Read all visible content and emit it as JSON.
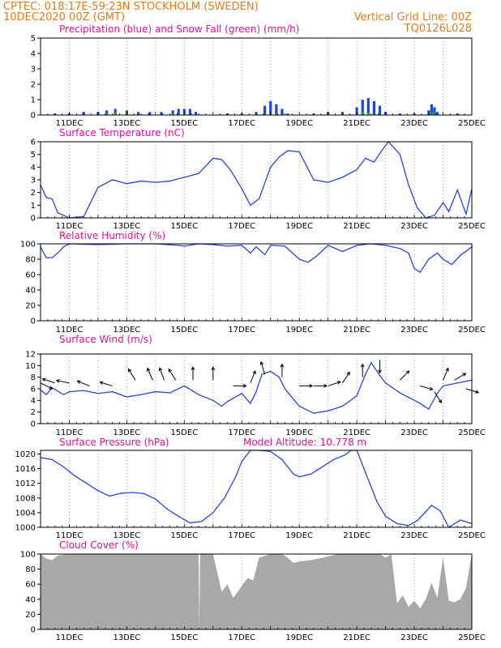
{
  "header": {
    "line1_left": "CPTEC:   018:17E-59:23N   STOCKHOLM (SWEDEN)",
    "line2_left": "10DEC2020 00Z (GMT)",
    "line2_right": "Vertical Grid Line: 00Z",
    "line3_right": "TQ0126L028"
  },
  "colors": {
    "header": "#e87a14",
    "title": "#e0119a",
    "precip": "#1a46e6",
    "snow": "#22b422",
    "line": "#2244e8",
    "cloud": "#a8a8a8",
    "axis": "#000000"
  },
  "chart_data": [
    {
      "type": "bar",
      "title": "Precipitation (blue) and Snow Fall (green) (mm/h)",
      "ylim": [
        0,
        5
      ],
      "yticks": [
        "0",
        "1",
        "2",
        "3",
        "4",
        "5"
      ],
      "xticks": [
        "11DEC",
        "13DEC",
        "15DEC",
        "17DEC",
        "19DEC",
        "21DEC",
        "23DEC",
        "25DEC"
      ],
      "x_days": [
        10,
        25
      ],
      "series": [
        {
          "name": "Precipitation",
          "x": [
            10.5,
            11.0,
            11.5,
            12.0,
            12.3,
            12.6,
            13.0,
            13.4,
            13.8,
            14.2,
            14.6,
            14.8,
            15.0,
            15.2,
            15.4,
            16.5,
            17.0,
            17.5,
            17.8,
            18.0,
            18.2,
            18.4,
            18.6,
            19.5,
            20.0,
            20.5,
            21.0,
            21.2,
            21.4,
            21.6,
            21.8,
            22.0,
            22.5,
            23.0,
            23.5,
            23.6,
            23.7,
            23.8,
            24.5
          ],
          "values": [
            0.1,
            0.1,
            0.2,
            0.2,
            0.3,
            0.4,
            0.3,
            0.2,
            0.2,
            0.2,
            0.3,
            0.4,
            0.4,
            0.4,
            0.2,
            0.1,
            0.1,
            0.2,
            0.6,
            0.9,
            0.7,
            0.4,
            0.1,
            0.1,
            0.2,
            0.2,
            0.5,
            1.0,
            1.1,
            0.9,
            0.6,
            0.2,
            0.1,
            0.1,
            0.3,
            0.7,
            0.5,
            0.2,
            0.1
          ]
        },
        {
          "name": "Snow Fall",
          "x": [
            12.3,
            12.6,
            13.0,
            14.6,
            15.0,
            18.0,
            18.2,
            21.2,
            21.4,
            23.6,
            23.7
          ],
          "values": [
            0.1,
            0.15,
            0.1,
            0.1,
            0.1,
            0.1,
            0.1,
            0.15,
            0.15,
            0.15,
            0.1
          ]
        }
      ]
    },
    {
      "type": "line",
      "title": "Surface Temperature (nC)",
      "ylim": [
        0,
        6
      ],
      "yticks": [
        "0",
        "1",
        "2",
        "3",
        "4",
        "5",
        "6"
      ],
      "xticks": [
        "11DEC",
        "13DEC",
        "15DEC",
        "17DEC",
        "19DEC",
        "21DEC",
        "23DEC",
        "25DEC"
      ],
      "x_days": [
        10,
        25
      ],
      "series": [
        {
          "name": "",
          "x": [
            10.0,
            10.2,
            10.4,
            10.6,
            11.0,
            11.5,
            12.0,
            12.5,
            13.0,
            13.5,
            14.0,
            14.5,
            15.0,
            15.5,
            16.0,
            16.3,
            16.6,
            17.0,
            17.3,
            17.6,
            18.0,
            18.3,
            18.6,
            19.0,
            19.5,
            20.0,
            20.5,
            21.0,
            21.3,
            21.6,
            21.9,
            22.1,
            22.5,
            22.8,
            23.1,
            23.4,
            23.7,
            24.0,
            24.2,
            24.5,
            24.8,
            25.0
          ],
          "values": [
            2.6,
            1.6,
            1.5,
            0.4,
            0.0,
            0.1,
            2.4,
            3.0,
            2.7,
            2.9,
            2.8,
            2.9,
            3.2,
            3.5,
            4.7,
            4.6,
            3.8,
            2.3,
            1.0,
            1.5,
            4.0,
            4.8,
            5.3,
            5.2,
            3.0,
            2.8,
            3.2,
            3.8,
            4.7,
            4.4,
            5.4,
            6.2,
            5.0,
            2.6,
            0.8,
            0.0,
            0.2,
            1.2,
            0.5,
            2.2,
            0.3,
            2.3
          ]
        }
      ]
    },
    {
      "type": "line",
      "title": "Relative Humidity (%)",
      "ylim": [
        0,
        100
      ],
      "yticks": [
        "0",
        "20",
        "40",
        "60",
        "80",
        "100"
      ],
      "xticks": [
        "11DEC",
        "13DEC",
        "15DEC",
        "17DEC",
        "19DEC",
        "21DEC",
        "23DEC",
        "25DEC"
      ],
      "x_days": [
        10,
        25
      ],
      "series": [
        {
          "name": "",
          "x": [
            10.0,
            10.2,
            10.4,
            10.6,
            10.8,
            11.0,
            12.0,
            13.0,
            14.0,
            14.8,
            15.0,
            15.5,
            16.0,
            16.5,
            17.0,
            17.3,
            17.5,
            17.8,
            18.0,
            18.5,
            19.0,
            19.3,
            19.6,
            20.0,
            20.5,
            21.0,
            21.5,
            22.0,
            22.5,
            22.8,
            23.0,
            23.2,
            23.5,
            23.8,
            24.0,
            24.3,
            24.6,
            25.0
          ],
          "values": [
            96,
            82,
            82,
            88,
            96,
            100,
            99,
            100,
            100,
            98,
            97,
            100,
            99,
            97,
            98,
            88,
            96,
            86,
            98,
            97,
            80,
            76,
            84,
            98,
            90,
            98,
            100,
            98,
            94,
            88,
            68,
            63,
            80,
            88,
            80,
            73,
            85,
            96
          ]
        }
      ]
    },
    {
      "type": "line",
      "title": "Surface Wind (m/s)",
      "ylim": [
        0,
        12
      ],
      "yticks": [
        "0",
        "2",
        "4",
        "6",
        "8",
        "10",
        "12"
      ],
      "xticks": [
        "11DEC",
        "13DEC",
        "15DEC",
        "17DEC",
        "19DEC",
        "21DEC",
        "23DEC",
        "25DEC"
      ],
      "x_days": [
        10,
        25
      ],
      "series": [
        {
          "name": "",
          "x": [
            10.0,
            10.2,
            10.4,
            10.8,
            11.0,
            11.5,
            12.0,
            12.5,
            13.0,
            13.5,
            14.0,
            14.5,
            15.0,
            15.5,
            16.0,
            16.3,
            16.5,
            17.0,
            17.3,
            17.5,
            17.7,
            18.0,
            18.3,
            18.5,
            19.0,
            19.5,
            20.0,
            20.5,
            21.0,
            21.3,
            21.5,
            21.8,
            22.0,
            22.5,
            23.0,
            23.2,
            23.5,
            23.8,
            24.0,
            24.5,
            25.0
          ],
          "values": [
            5.8,
            5.0,
            6.2,
            5.0,
            5.5,
            5.7,
            5.2,
            5.5,
            4.6,
            5.0,
            5.5,
            5.3,
            6.5,
            5.0,
            4.0,
            3.0,
            3.8,
            5.2,
            3.5,
            5.5,
            8.5,
            9.0,
            8.0,
            6.0,
            3.0,
            1.8,
            2.2,
            3.0,
            4.8,
            8.5,
            10.5,
            8.3,
            7.0,
            5.3,
            4.0,
            3.5,
            2.5,
            5.2,
            6.5,
            7.0,
            7.5
          ]
        }
      ],
      "wind_arrows": [
        {
          "x": 10.0,
          "y": 7.0,
          "u": 1.0,
          "v": -0.5
        },
        {
          "x": 10.5,
          "y": 7.0,
          "u": -0.9,
          "v": 0.3
        },
        {
          "x": 11.0,
          "y": 7.0,
          "u": -1.0,
          "v": 0.2
        },
        {
          "x": 11.7,
          "y": 6.5,
          "u": -1.0,
          "v": 0.4
        },
        {
          "x": 12.5,
          "y": 6.5,
          "u": -1.0,
          "v": 0.3
        },
        {
          "x": 13.3,
          "y": 7.5,
          "u": -0.5,
          "v": 0.8
        },
        {
          "x": 13.9,
          "y": 7.5,
          "u": -0.4,
          "v": 0.9
        },
        {
          "x": 14.3,
          "y": 7.5,
          "u": -0.3,
          "v": 0.8
        },
        {
          "x": 14.7,
          "y": 7.5,
          "u": -0.5,
          "v": 0.8
        },
        {
          "x": 15.3,
          "y": 7.5,
          "u": 0.0,
          "v": 1.0
        },
        {
          "x": 16.0,
          "y": 7.5,
          "u": 0.0,
          "v": 1.0
        },
        {
          "x": 16.7,
          "y": 6.5,
          "u": 0.5,
          "v": 0.0
        },
        {
          "x": 17.3,
          "y": 7.0,
          "u": 0.4,
          "v": 1.0
        },
        {
          "x": 17.8,
          "y": 8.5,
          "u": -0.3,
          "v": 1.0
        },
        {
          "x": 18.4,
          "y": 8.0,
          "u": 0.0,
          "v": 1.0
        },
        {
          "x": 19.0,
          "y": 6.5,
          "u": 0.6,
          "v": 0.0
        },
        {
          "x": 19.5,
          "y": 6.5,
          "u": 0.5,
          "v": 0.0
        },
        {
          "x": 20.0,
          "y": 6.5,
          "u": 0.6,
          "v": 0.2
        },
        {
          "x": 20.5,
          "y": 7.0,
          "u": 0.4,
          "v": 0.6
        },
        {
          "x": 21.2,
          "y": 8.0,
          "u": 0.0,
          "v": 1.0
        },
        {
          "x": 21.8,
          "y": 11.0,
          "u": 0.0,
          "v": -1.0
        },
        {
          "x": 22.5,
          "y": 7.5,
          "u": 0.5,
          "v": 0.5
        },
        {
          "x": 23.2,
          "y": 6.5,
          "u": 0.7,
          "v": -0.2
        },
        {
          "x": 23.7,
          "y": 5.5,
          "u": 0.5,
          "v": -0.8
        },
        {
          "x": 24.0,
          "y": 7.5,
          "u": 0.3,
          "v": 0.7
        },
        {
          "x": 24.4,
          "y": 7.5,
          "u": 0.5,
          "v": 0.3
        },
        {
          "x": 24.8,
          "y": 6.0,
          "u": 1.0,
          "v": -0.3
        }
      ]
    },
    {
      "type": "line",
      "title": "Surface Pressure (hPa)",
      "annotation": "Model Altitude: 10.778 m",
      "ylim": [
        1000,
        1021
      ],
      "yticks": [
        "1000",
        "1004",
        "1008",
        "1012",
        "1016",
        "1020"
      ],
      "xticks": [
        "11DEC",
        "13DEC",
        "15DEC",
        "17DEC",
        "19DEC",
        "21DEC",
        "23DEC",
        "25DEC"
      ],
      "x_days": [
        10,
        25
      ],
      "series": [
        {
          "name": "",
          "x": [
            10.0,
            10.4,
            10.8,
            11.2,
            11.6,
            12.0,
            12.4,
            12.8,
            13.2,
            13.6,
            14.0,
            14.4,
            14.8,
            15.2,
            15.6,
            16.0,
            16.4,
            16.8,
            17.0,
            17.3,
            17.6,
            18.0,
            18.4,
            18.8,
            19.0,
            19.4,
            19.8,
            20.2,
            20.6,
            20.8,
            21.0,
            21.3,
            21.7,
            22.0,
            22.4,
            22.8,
            23.1,
            23.4,
            23.6,
            23.9,
            24.2,
            24.6,
            25.0
          ],
          "values": [
            1019,
            1018.5,
            1016.5,
            1014,
            1012,
            1010,
            1008.5,
            1009.3,
            1009.5,
            1009.2,
            1007.7,
            1005,
            1003,
            1001.2,
            1001.6,
            1004,
            1008,
            1014,
            1018,
            1021,
            1021.5,
            1020.7,
            1018.5,
            1014.5,
            1013.8,
            1014.5,
            1016.5,
            1018.5,
            1019.8,
            1021,
            1021,
            1015,
            1007,
            1003,
            1001,
            1000.5,
            1001.8,
            1004.3,
            1006,
            1004.5,
            1000,
            1002,
            1001
          ]
        }
      ]
    },
    {
      "type": "area",
      "title": "Cloud Cover (%)",
      "ylim": [
        0,
        100
      ],
      "yticks": [
        "0",
        "20",
        "40",
        "60",
        "80",
        "100"
      ],
      "xticks": [
        "11DEC",
        "13DEC",
        "15DEC",
        "17DEC",
        "19DEC",
        "21DEC",
        "23DEC",
        "25DEC"
      ],
      "x_days": [
        10,
        25
      ],
      "series": [
        {
          "name": "",
          "x": [
            10.0,
            10.2,
            10.4,
            10.6,
            11.0,
            12.0,
            13.0,
            14.0,
            15.0,
            15.5,
            15.52,
            15.55,
            16.0,
            16.3,
            16.5,
            16.7,
            16.9,
            17.0,
            17.2,
            17.4,
            17.6,
            18.0,
            18.4,
            18.6,
            18.8,
            19.0,
            19.4,
            19.8,
            20.0,
            20.4,
            20.8,
            21.0,
            21.4,
            21.8,
            22.0,
            22.2,
            22.4,
            22.6,
            22.8,
            23.0,
            23.2,
            23.4,
            23.6,
            23.8,
            24.0,
            24.2,
            24.4,
            24.6,
            24.8,
            25.0
          ],
          "values": [
            100,
            94,
            92,
            98,
            100,
            100,
            100,
            100,
            100,
            100,
            0,
            100,
            100,
            50,
            60,
            42,
            52,
            58,
            68,
            65,
            95,
            100,
            100,
            95,
            88,
            90,
            92,
            95,
            97,
            100,
            100,
            100,
            100,
            100,
            95,
            100,
            35,
            45,
            30,
            38,
            28,
            40,
            62,
            42,
            95,
            38,
            36,
            40,
            55,
            100
          ]
        }
      ]
    }
  ]
}
